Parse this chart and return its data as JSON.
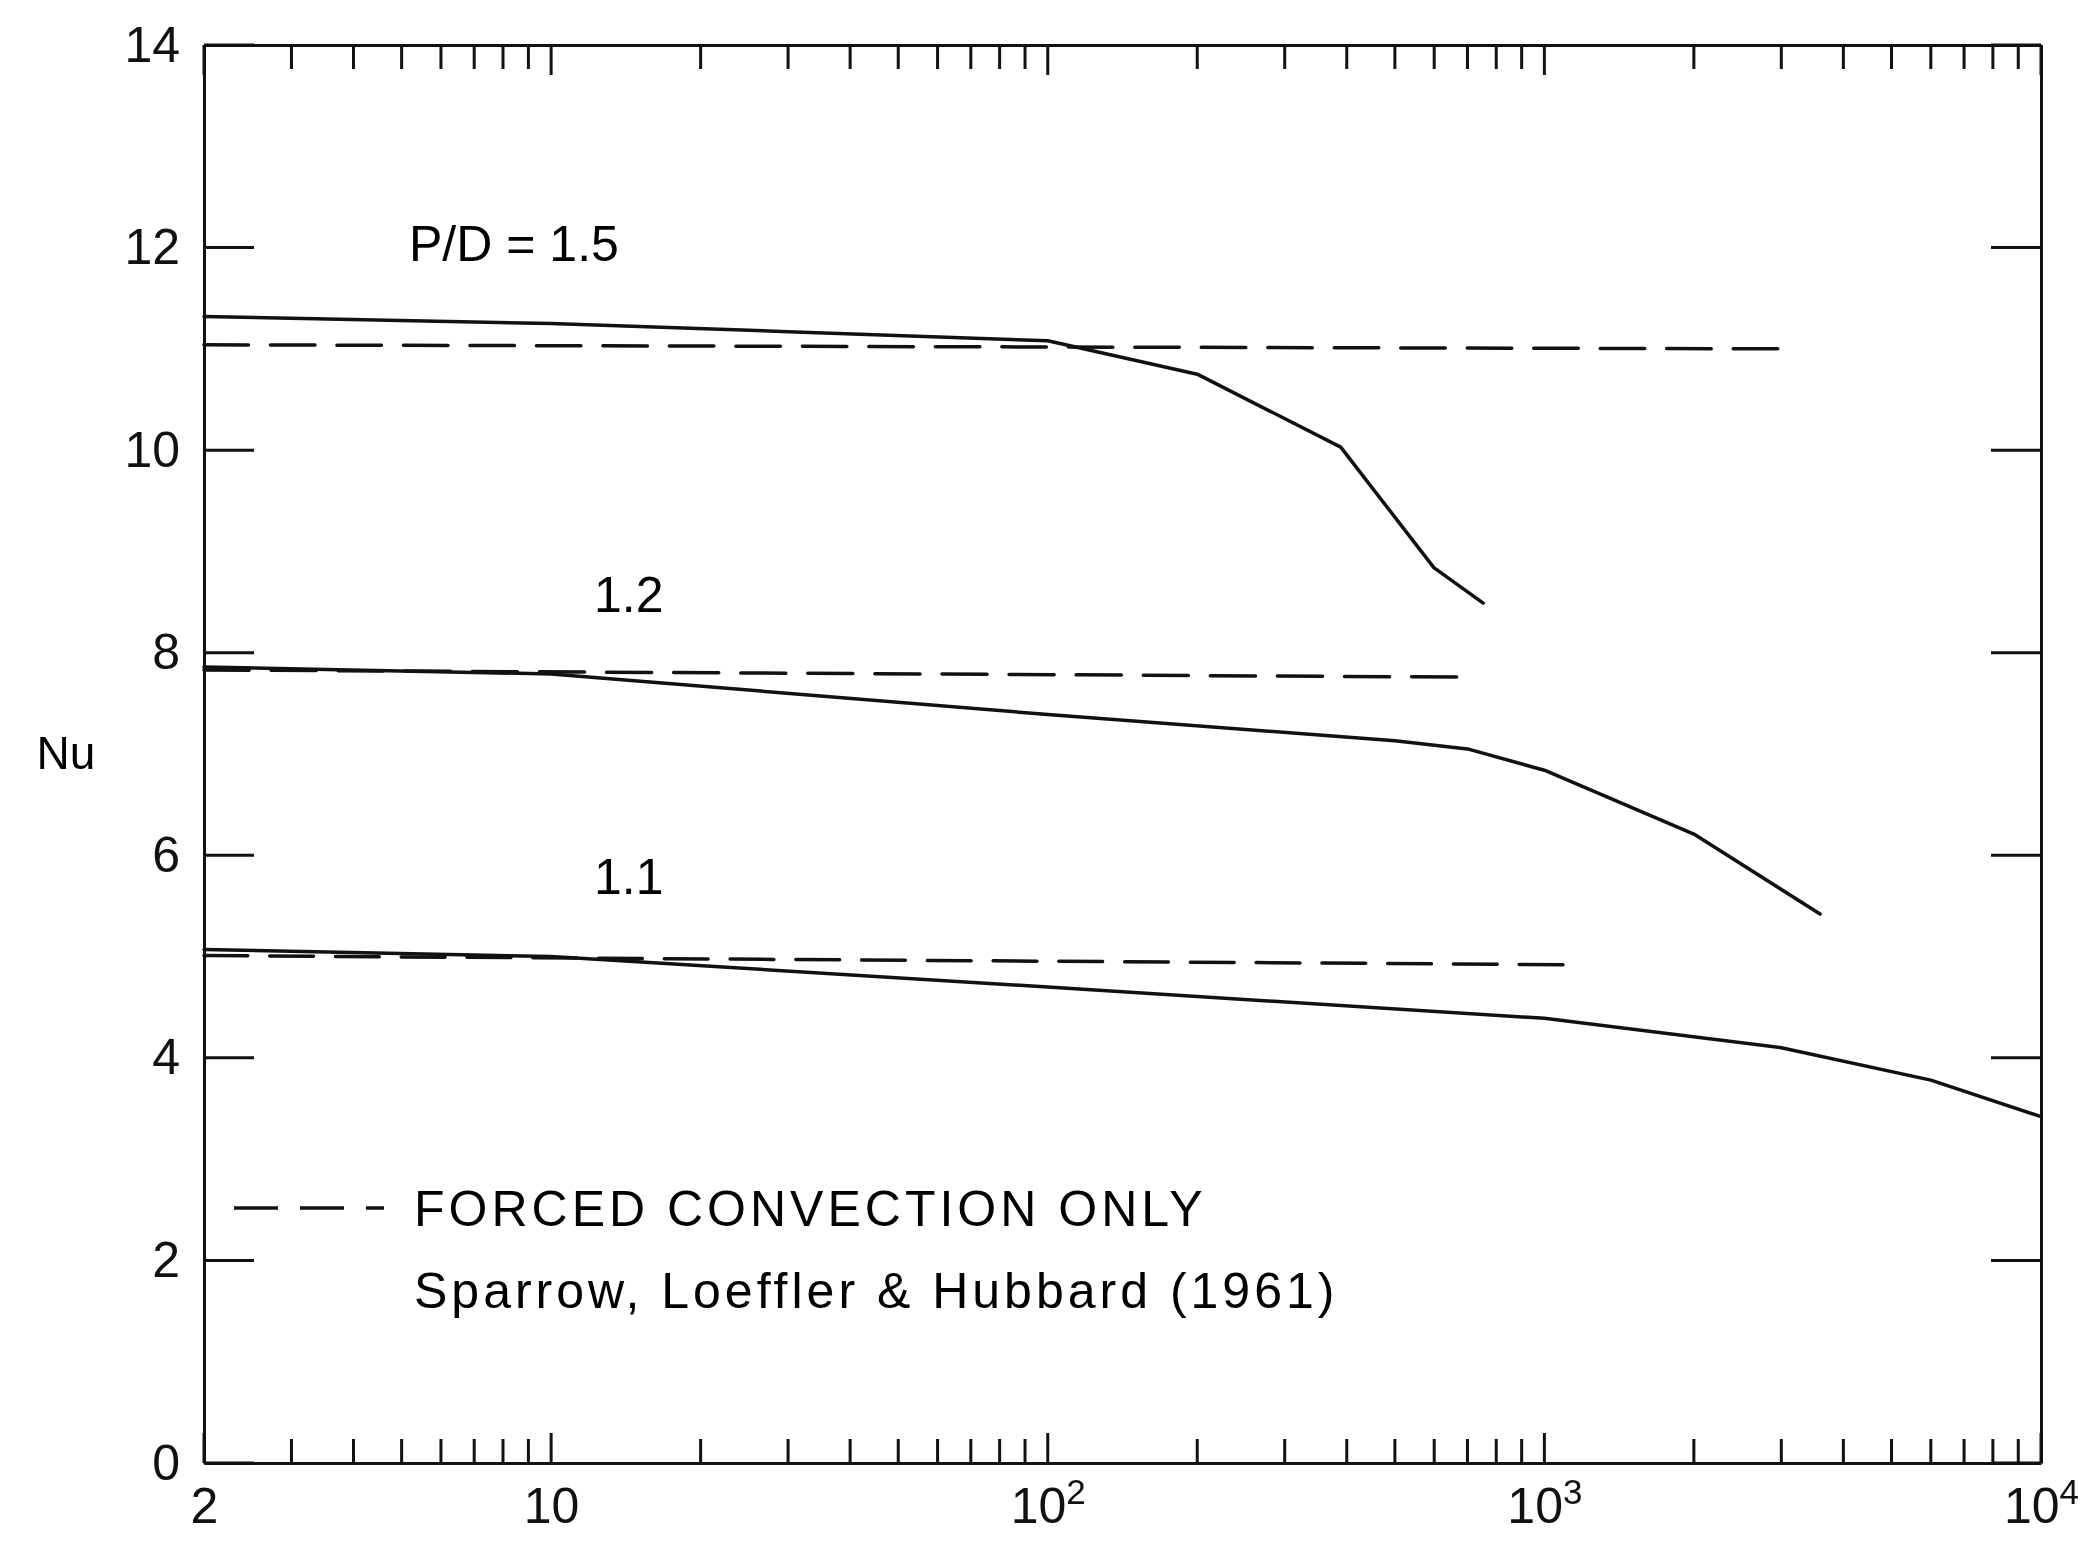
{
  "chart_data": {
    "type": "line",
    "ylabel": "Nu",
    "log": "x",
    "grid": false,
    "legend": "bottom left",
    "line_style": "solid",
    "marker": "none",
    "xlim": [
      2,
      10000
    ],
    "ylim": [
      0,
      14
    ],
    "xticks": [
      2,
      10,
      {
        "value": 100,
        "label": "10$^{2}$"
      },
      {
        "value": 1000,
        "label": "10$^{3}$"
      },
      {
        "value": 10000,
        "label": "10$^{4}$"
      }
    ],
    "yticks": [
      0,
      2,
      4,
      6,
      8,
      10,
      12,
      14
    ],
    "series": [
      {
        "color": "#111111",
        "x": [
          2,
          10,
          30,
          100,
          200,
          389,
          599,
          753
        ],
        "values": [
          11.32,
          11.25,
          11.17,
          11.08,
          10.75,
          10.03,
          8.84,
          8.49
        ]
      },
      {
        "color": "#111111",
        "line_style": "dashed",
        "name": "FORCED CONVECTION ONLY",
        "x": [
          2,
          2950
        ],
        "values": [
          11.04,
          11.0
        ]
      },
      {
        "color": "#111111",
        "x": [
          2,
          10,
          100,
          500,
          700,
          1000,
          2000,
          3590
        ],
        "values": [
          7.86,
          7.79,
          7.39,
          7.13,
          7.05,
          6.84,
          6.21,
          5.42
        ]
      },
      {
        "color": "#111111",
        "line_style": "dashed",
        "x": [
          2,
          666
        ],
        "values": [
          7.83,
          7.76
        ]
      },
      {
        "color": "#111111",
        "x": [
          2,
          10,
          100,
          1000,
          3000,
          6000,
          10000
        ],
        "values": [
          5.07,
          5.0,
          4.7,
          4.39,
          4.1,
          3.78,
          3.42
        ]
      },
      {
        "color": "#111111",
        "line_style": "dashed",
        "x": [
          2,
          1090
        ],
        "values": [
          5.01,
          4.92
        ]
      }
    ],
    "annotations": [
      "P/D = 1.5",
      "1.2",
      "1.1",
      "Sparrow, Loeffler & Hubbard (1961)"
    ]
  }
}
